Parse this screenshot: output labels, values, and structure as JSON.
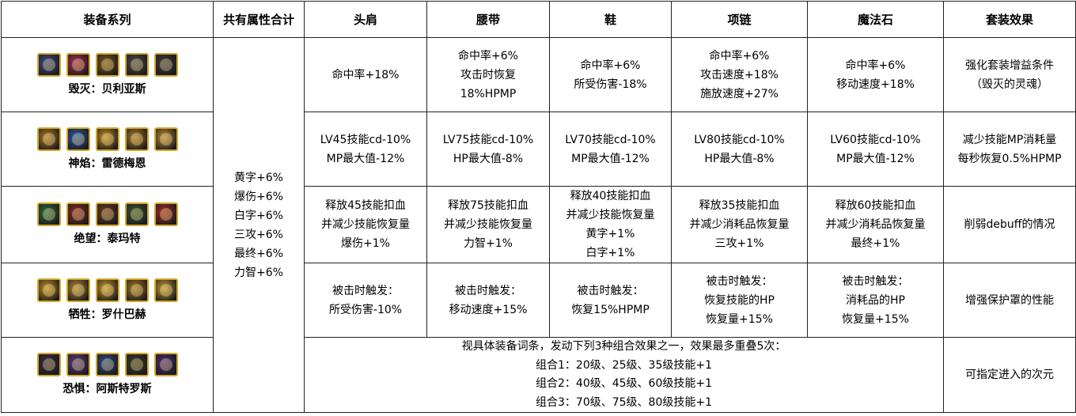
{
  "headers": [
    "装备系列",
    "共有属性合计",
    "头肩",
    "腰带",
    "鞋",
    "项链",
    "魔法石",
    "套装效果"
  ],
  "common_attributes": [
    "黄字+6%",
    "爆伤+6%",
    "白字+6%",
    "三攻+6%",
    "最终+6%",
    "力智+6%"
  ],
  "rows": [
    {
      "series": "毁灭：贝利亚斯",
      "icon_colors": [
        "#3a4a8a",
        "#a8305a",
        "#7a5a20",
        "#4a4a52",
        "#3a3a44"
      ],
      "cells": [
        [
          "命中率+18%"
        ],
        [
          "命中率+6%",
          "攻击时恢复",
          "18%HPMP"
        ],
        [
          "命中率+6%",
          "所受伤害-18%"
        ],
        [
          "命中率+6%",
          "攻击速度+18%",
          "施放速度+27%"
        ],
        [
          "命中率+6%",
          "移动速度+18%"
        ]
      ],
      "set_effect": [
        "强化套装增益条件",
        "（毁灭的灵魂）"
      ]
    },
    {
      "series": "神焰：雷德梅恩",
      "icon_colors": [
        "#b07a2a",
        "#2a5ab0",
        "#c09030",
        "#a87a30",
        "#b88a3a"
      ],
      "cells": [
        [
          "LV45技能cd-10%",
          "MP最大值-12%"
        ],
        [
          "LV75技能cd-10%",
          "HP最大值-8%"
        ],
        [
          "LV70技能cd-10%",
          "MP最大值-12%"
        ],
        [
          "LV80技能cd-10%",
          "HP最大值-8%"
        ],
        [
          "LV60技能cd-10%",
          "MP最大值-12%"
        ]
      ],
      "set_effect": [
        "减少技能MP消耗量",
        "每秒恢复0.5%HPMP"
      ]
    },
    {
      "series": "绝望：泰玛特",
      "icon_colors": [
        "#2a6a4a",
        "#8a2a2a",
        "#6a3a2a",
        "#3a5a3a",
        "#a02a2a"
      ],
      "cells": [
        [
          "释放45技能扣血",
          "并减少技能恢复量",
          "爆伤+1%"
        ],
        [
          "释放75技能扣血",
          "并减少技能恢复量",
          "力智+1%"
        ],
        [
          "释放40技能扣血",
          "并减少技能恢复量",
          "黄字+1%",
          "白字+1%"
        ],
        [
          "释放35技能扣血",
          "并减少消耗品恢复量",
          "三攻+1%"
        ],
        [
          "释放60技能扣血",
          "并减少消耗品恢复量",
          "最终+1%"
        ]
      ],
      "set_effect": [
        "削弱debuff的情况"
      ]
    },
    {
      "series": "牺牲：罗什巴赫",
      "icon_colors": [
        "#c0902a",
        "#b08a3a",
        "#c89a30",
        "#a07a2a",
        "#c09a3a"
      ],
      "cells": [
        [
          "被击时触发：",
          "所受伤害-10%"
        ],
        [
          "被击时触发：",
          "移动速度+15%"
        ],
        [
          "被击时触发：",
          "恢复15%HPMP"
        ],
        [
          "被击时触发：",
          "恢复技能的HP",
          "恢复量+15%"
        ],
        [
          "被击时触发：",
          "消耗品的HP",
          "恢复量+15%"
        ]
      ],
      "set_effect": [
        "增强保护罩的性能"
      ]
    },
    {
      "series": "恐惧：阿斯特罗斯",
      "icon_colors": [
        "#3a2a4a",
        "#5a3a8a",
        "#2a4a8a",
        "#3a3a30",
        "#4a2a7a"
      ],
      "combined": [
        "视具体装备词条，发动下列3种组合效果之一，效果最多重叠5次：",
        "组合1：20级、25级、35级技能+1",
        "组合2：40级、45级、60级技能+1",
        "组合3：70级、75级、80级技能+1"
      ],
      "set_effect": [
        "可指定进入的次元"
      ]
    }
  ]
}
